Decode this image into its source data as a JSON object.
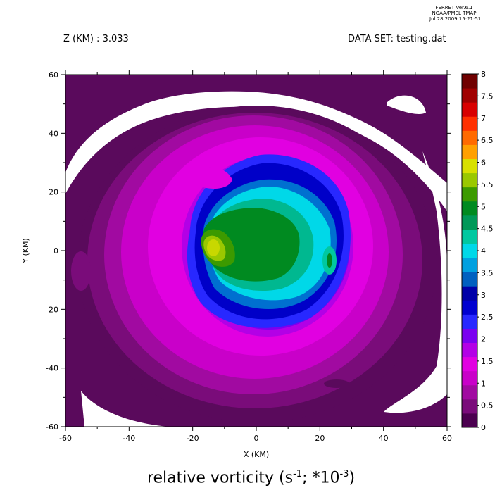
{
  "header": {
    "program": "FERRET  Ver.6.1",
    "org": "NOAA/PMEL TMAP",
    "timestamp": "Jul 28 2009 15:21:51"
  },
  "plot_labels": {
    "z_label": "Z (KM) : 3.033",
    "dataset_label": "DATA SET: testing.dat"
  },
  "title": {
    "main": "relative vorticity (s",
    "exp1": "-1",
    "mid": "; *10",
    "exp2": "-3",
    "end": ")"
  },
  "chart_data": {
    "type": "heatmap",
    "title": "relative vorticity (s-1; *10-3)",
    "xlabel": "X (KM)",
    "ylabel": "Y (KM)",
    "xlim": [
      -60,
      60
    ],
    "ylim": [
      -60,
      60
    ],
    "x_ticks": [
      "-60",
      "-40",
      "-20",
      "0",
      "20",
      "40",
      "60"
    ],
    "y_ticks": [
      "-60",
      "-40",
      "-20",
      "0",
      "20",
      "40",
      "60"
    ],
    "colorbar_min": 0,
    "colorbar_max": 8,
    "colorbar_step": 0.5,
    "colorbar_labels": [
      "0",
      "0.5",
      "1",
      "1.5",
      "2",
      "2.5",
      "3",
      "3.5",
      "4",
      "4.5",
      "5",
      "5.5",
      "6",
      "6.5",
      "7",
      "7.5",
      "8"
    ],
    "colorbar_colors": [
      "#4b004f",
      "#7a0c7a",
      "#a10aa1",
      "#c900c9",
      "#e100e1",
      "#b300e6",
      "#7a00f0",
      "#2828ff",
      "#0000d0",
      "#0000a8",
      "#0060c0",
      "#00a0e0",
      "#00d8e8",
      "#00c8a0",
      "#009858",
      "#008a20",
      "#3c9a00",
      "#9ac800",
      "#d8e000",
      "#ffa000",
      "#ff6a00",
      "#ff3000",
      "#d80000",
      "#a00000",
      "#700000"
    ],
    "background_color": "#5a0a5c",
    "features": "Closed vortex centered near (0,0) with maximum near (-15,2) of ~6; ring of low/zero values (white) outside about radius 45 km"
  }
}
